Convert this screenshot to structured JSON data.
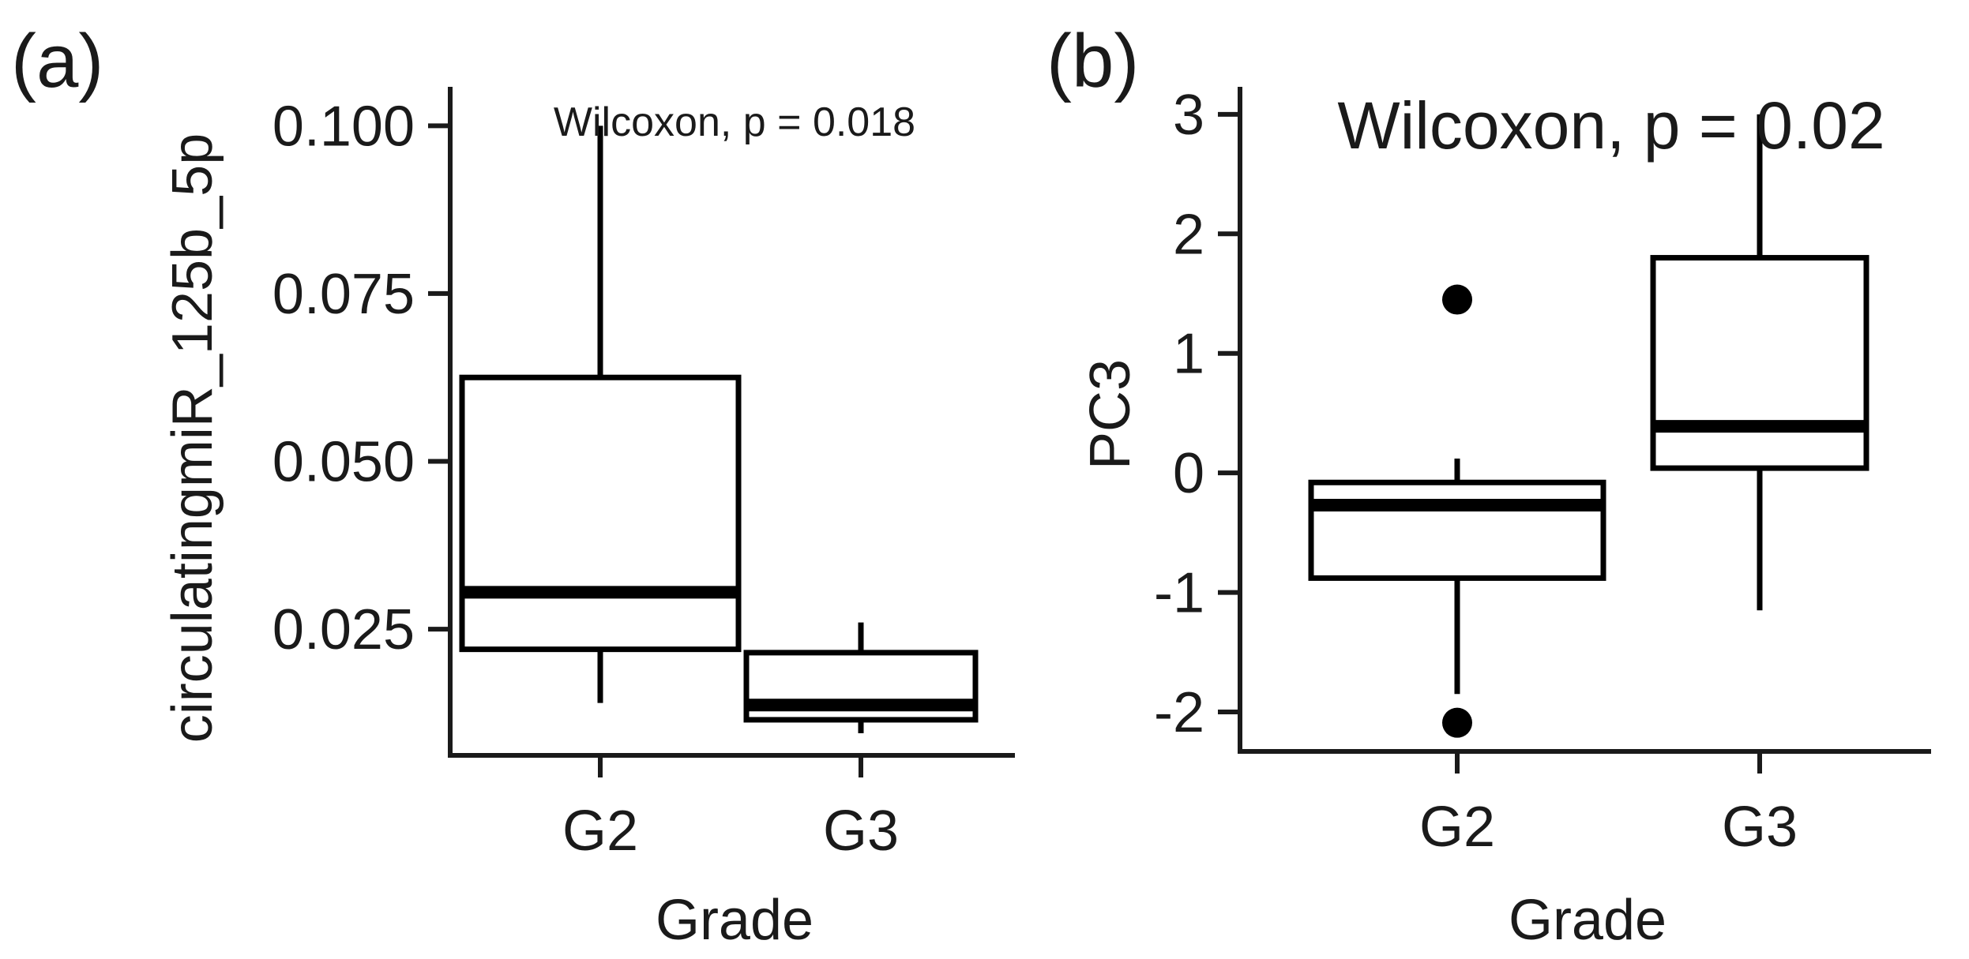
{
  "panels": {
    "a": {
      "label": "(a)",
      "annotation": "Wilcoxon, p = 0.018",
      "ylabel": "circulatingmiR_125b_5p",
      "xlabel": "Grade",
      "yticks": [
        "0.025",
        "0.050",
        "0.075",
        "0.100"
      ],
      "xticks": [
        "G2",
        "G3"
      ]
    },
    "b": {
      "label": "(b)",
      "annotation": "Wilcoxon, p = 0.02",
      "ylabel": "PC3",
      "xlabel": "Grade",
      "yticks": [
        "-2",
        "-1",
        "0",
        "1",
        "2",
        "3"
      ],
      "xticks": [
        "G2",
        "G3"
      ]
    }
  },
  "chart_data": [
    {
      "type": "box",
      "panel": "(a)",
      "xlabel": "Grade",
      "ylabel": "circulatingmiR_125b_5p",
      "categories": [
        "G2",
        "G3"
      ],
      "ylim": [
        0.0062,
        0.1058
      ],
      "yticks": [
        0.025,
        0.05,
        0.075,
        0.1
      ],
      "annotation": "Wilcoxon, p = 0.018",
      "boxes": [
        {
          "category": "G2",
          "whisker_low": 0.014,
          "q1": 0.022,
          "median": 0.0305,
          "q3": 0.0625,
          "whisker_high": 0.1,
          "outliers": []
        },
        {
          "category": "G3",
          "whisker_low": 0.0095,
          "q1": 0.0115,
          "median": 0.0137,
          "q3": 0.0215,
          "whisker_high": 0.026,
          "outliers": []
        }
      ]
    },
    {
      "type": "box",
      "panel": "(b)",
      "xlabel": "Grade",
      "ylabel": "PC3",
      "categories": [
        "G2",
        "G3"
      ],
      "ylim": [
        -2.33,
        3.23
      ],
      "yticks": [
        -2,
        -1,
        0,
        1,
        2,
        3
      ],
      "annotation": "Wilcoxon, p = 0.02",
      "boxes": [
        {
          "category": "G2",
          "whisker_low": -1.85,
          "q1": -0.88,
          "median": -0.27,
          "q3": -0.08,
          "whisker_high": 0.12,
          "outliers": [
            1.45,
            -2.09
          ]
        },
        {
          "category": "G3",
          "whisker_low": -1.15,
          "q1": 0.04,
          "median": 0.39,
          "q3": 1.8,
          "whisker_high": 3.0,
          "outliers": []
        }
      ]
    }
  ]
}
